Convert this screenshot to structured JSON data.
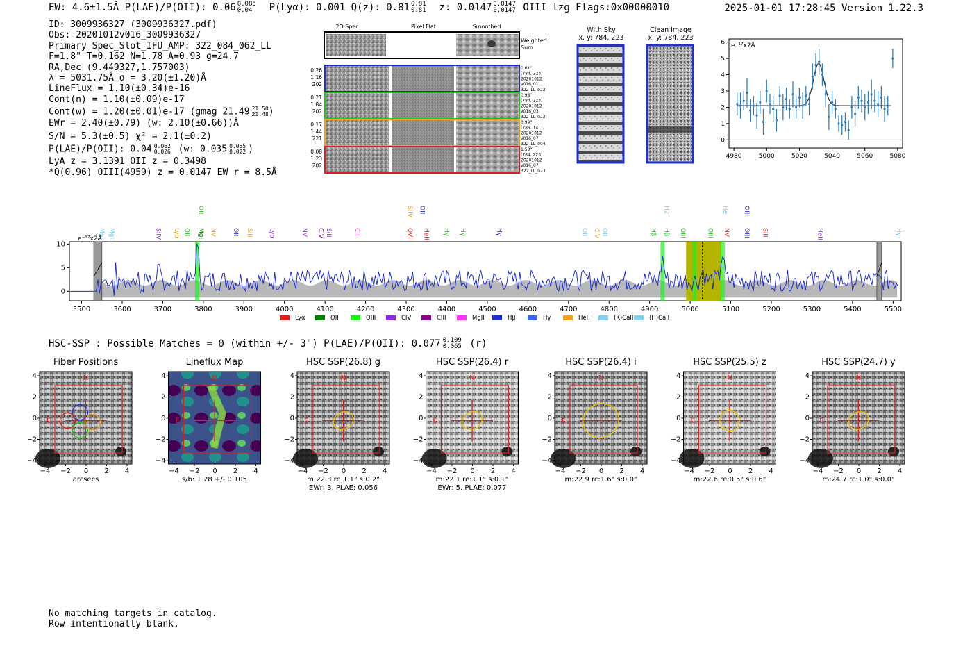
{
  "header": {
    "left": "EW: 4.6±1.5Å  P(LAE)/P(OII): 0.06",
    "plae_sup": "0.085",
    "plae_sub": "0.04",
    "plya": "P(Lyα): 0.001  Q(z): 0.81",
    "qz_sup": "0.81",
    "qz_sub": "0.81",
    "z": "z: 0.0147",
    "z_sup": "0.0147",
    "z_sub": "0.0147",
    "tail": "OIII  lzg  Flags:0x00000010",
    "timestamp": "2025-01-01 17:28:45  Version 1.22.3"
  },
  "info": {
    "lines": [
      "ID: 3009936327 (3009936327.pdf)",
      "Obs: 20201012v016_3009936327",
      "Primary Spec_Slot_IFU_AMP: 322_084_062_LL",
      "F=1.8\"  T=0.162  N=1.78  A=0.93  g=24.7",
      "RA,Dec (9.449327,1.757003)",
      "λ = 5031.75Å  σ = 3.20(±1.20)Å",
      "LineFlux = 1.10(±0.34)e-16",
      "Cont(n) = 1.10(±0.09)e-17"
    ],
    "contw": "Cont(w) = 1.20(±0.01)e-17 (gmag 21.49",
    "contw_sup": "21.50",
    "contw_sub": "21.48",
    "contw_end": ")",
    "ewr": "EWr = 2.40(±0.79) (w: 2.10(±0.66))Å",
    "sn": "S/N = 5.3(±0.5)  χ² = 2.1(±0.2)",
    "plae_a": "P(LAE)/P(OII): 0.04",
    "plae_a_sup": "0.062",
    "plae_a_sub": "0.026",
    "plae_b": "(w: 0.035",
    "plae_b_sup": "0.055",
    "plae_b_sub": "0.022",
    "plae_c": ")",
    "lya": "LyA z = 3.1391  OII z = 0.3498",
    "q": "*Q(0.96) OIII(4959) z = 0.0147  EW r = 8.5Å"
  },
  "cutouts": {
    "headers": [
      "2D Spec",
      "Pixel Flat",
      "Smoothed"
    ],
    "weighted_label": "Weighted\nSum",
    "rows": [
      {
        "left": [
          "0.26",
          "1.16",
          "202"
        ],
        "right": [
          "0.61\"",
          "(784, 223)",
          "20201012",
          "v016_01",
          "322_LL_023"
        ],
        "color": "#1f2fd0"
      },
      {
        "left": [
          "0.21",
          "1.84",
          "202"
        ],
        "right": [
          "0.98\"",
          "(784, 223)",
          "20201012",
          "v016_03",
          "322_LL_023"
        ],
        "color": "#22c422"
      },
      {
        "left": [
          "0.17",
          "1.44",
          "221"
        ],
        "right": [
          "0.99\"",
          "(789, 14)",
          "20201012",
          "v016_07",
          "322_LL_004"
        ],
        "color": "#f2a020"
      },
      {
        "left": [
          "0.08",
          "1.23",
          "202"
        ],
        "right": [
          "1.58\"",
          "(784, 223)",
          "20201012",
          "v016_07",
          "322_LL_023"
        ],
        "color": "#e01e1e"
      }
    ]
  },
  "sky": {
    "with_sky": "With Sky",
    "clean": "Clean Image",
    "coords": "x, y: 784, 223"
  },
  "chart_data": [
    {
      "type": "line",
      "id": "line-fit",
      "ylabel": "e⁻¹⁷x2Å",
      "xlim": [
        4977,
        5083
      ],
      "ylim": [
        -0.5,
        6.2
      ],
      "xticks": [
        4980,
        5000,
        5020,
        5040,
        5060,
        5080
      ],
      "yticks": [
        0,
        1,
        2,
        3,
        4,
        5,
        6
      ],
      "points": [
        {
          "x": 4982,
          "y": 2.2,
          "e": 0.7
        },
        {
          "x": 4984,
          "y": 2.1,
          "e": 0.8
        },
        {
          "x": 4986,
          "y": 2.4,
          "e": 0.6
        },
        {
          "x": 4988,
          "y": 2.9,
          "e": 0.9
        },
        {
          "x": 4990,
          "y": 1.8,
          "e": 0.7
        },
        {
          "x": 4992,
          "y": 2.1,
          "e": 0.6
        },
        {
          "x": 4994,
          "y": 1.5,
          "e": 0.8
        },
        {
          "x": 4996,
          "y": 2.3,
          "e": 0.7
        },
        {
          "x": 4998,
          "y": 1.1,
          "e": 0.8
        },
        {
          "x": 5000,
          "y": 3.0,
          "e": 0.7
        },
        {
          "x": 5002,
          "y": 2.2,
          "e": 0.6
        },
        {
          "x": 5004,
          "y": 1.9,
          "e": 0.8
        },
        {
          "x": 5006,
          "y": 1.2,
          "e": 0.7
        },
        {
          "x": 5008,
          "y": 2.7,
          "e": 0.6
        },
        {
          "x": 5010,
          "y": 2.0,
          "e": 0.8
        },
        {
          "x": 5012,
          "y": 2.5,
          "e": 0.7
        },
        {
          "x": 5014,
          "y": 1.9,
          "e": 0.6
        },
        {
          "x": 5016,
          "y": 2.8,
          "e": 0.8
        },
        {
          "x": 5018,
          "y": 2.0,
          "e": 0.7
        },
        {
          "x": 5020,
          "y": 2.6,
          "e": 0.6
        },
        {
          "x": 5022,
          "y": 2.1,
          "e": 0.8
        },
        {
          "x": 5024,
          "y": 2.7,
          "e": 0.6
        },
        {
          "x": 5026,
          "y": 2.2,
          "e": 0.7
        },
        {
          "x": 5028,
          "y": 3.9,
          "e": 0.8
        },
        {
          "x": 5030,
          "y": 4.6,
          "e": 0.7
        },
        {
          "x": 5032,
          "y": 4.8,
          "e": 0.8
        },
        {
          "x": 5034,
          "y": 4.0,
          "e": 0.7
        },
        {
          "x": 5036,
          "y": 2.8,
          "e": 0.8
        },
        {
          "x": 5038,
          "y": 1.4,
          "e": 0.8
        },
        {
          "x": 5040,
          "y": 2.3,
          "e": 0.7
        },
        {
          "x": 5042,
          "y": 1.9,
          "e": 0.6
        },
        {
          "x": 5044,
          "y": 1.0,
          "e": 0.5
        },
        {
          "x": 5046,
          "y": 0.9,
          "e": 0.6
        },
        {
          "x": 5048,
          "y": 1.1,
          "e": 0.6
        },
        {
          "x": 5050,
          "y": 0.6,
          "e": 0.6
        },
        {
          "x": 5052,
          "y": 2.0,
          "e": 0.7
        },
        {
          "x": 5054,
          "y": 1.6,
          "e": 0.8
        },
        {
          "x": 5056,
          "y": 2.6,
          "e": 0.7
        },
        {
          "x": 5058,
          "y": 2.4,
          "e": 0.7
        },
        {
          "x": 5060,
          "y": 2.0,
          "e": 0.8
        },
        {
          "x": 5062,
          "y": 2.3,
          "e": 0.7
        },
        {
          "x": 5064,
          "y": 2.8,
          "e": 0.9
        },
        {
          "x": 5066,
          "y": 2.4,
          "e": 0.7
        },
        {
          "x": 5068,
          "y": 2.2,
          "e": 0.8
        },
        {
          "x": 5070,
          "y": 2.6,
          "e": 0.7
        },
        {
          "x": 5072,
          "y": 1.9,
          "e": 0.8
        },
        {
          "x": 5074,
          "y": 2.1,
          "e": 0.6
        },
        {
          "x": 5077,
          "y": 5.0,
          "e": 0.6
        }
      ],
      "model": {
        "continuum": 2.1,
        "amplitude": 2.6,
        "center": 5031.75,
        "sigma": 3.2
      }
    },
    {
      "type": "line",
      "id": "full-spectrum",
      "ylabel": "e⁻¹⁷x2Å",
      "xlim": [
        3470,
        5520
      ],
      "ylim": [
        -2,
        10.5
      ],
      "xticks": [
        3500,
        3600,
        3700,
        3800,
        3900,
        4000,
        4100,
        4200,
        4300,
        4400,
        4500,
        4600,
        4700,
        4800,
        4900,
        5000,
        5100,
        5200,
        5300,
        5400,
        5500
      ],
      "yticks": [
        0,
        5,
        10
      ],
      "features": [
        {
          "x": 3785,
          "label": "OII",
          "color": "#22c422"
        },
        {
          "x": 4932,
          "label": "Hβ",
          "color": "#22c422"
        },
        {
          "x": 5010,
          "label": "OIII",
          "color": "#22c422"
        },
        {
          "x": 5030,
          "label": "OIII",
          "color": "#000000",
          "band": [
            4990,
            5077
          ]
        },
        {
          "x": 5080,
          "label": "OIII",
          "color": "#22c422"
        }
      ],
      "shaded": [
        {
          "from": 3530,
          "to": 3550
        },
        {
          "from": 5460,
          "to": 5472
        }
      ],
      "line_labels_top": [
        {
          "x": 3785,
          "text": "OII",
          "color": "#22c422"
        },
        {
          "x": 4300,
          "text": "SiIV",
          "color": "#f2a020"
        },
        {
          "x": 4330,
          "text": "OII",
          "color": "#1f2fd0"
        },
        {
          "x": 4932,
          "text": "H2",
          "color": "#7ec8ea"
        },
        {
          "x": 5077,
          "text": "He",
          "color": "#7ec8ea"
        },
        {
          "x": 5130,
          "text": "OIII",
          "color": "#1f2fd0"
        }
      ],
      "line_labels_low": [
        {
          "x": 3540,
          "text": "MgII",
          "color": "#7ec8ea"
        },
        {
          "x": 3565,
          "text": "MgII",
          "color": "#7ec8ea"
        },
        {
          "x": 3680,
          "text": "SiIV",
          "color": "#8a2be2"
        },
        {
          "x": 3725,
          "text": "Lyα",
          "color": "#f2a020"
        },
        {
          "x": 3750,
          "text": "OII",
          "color": "#22c422"
        },
        {
          "x": 3785,
          "text": "MgII",
          "color": "#008000"
        },
        {
          "x": 3815,
          "text": "NV",
          "color": "#f2a020"
        },
        {
          "x": 3870,
          "text": "OII",
          "color": "#1f2fd0"
        },
        {
          "x": 3905,
          "text": "SiII",
          "color": "#f2a020"
        },
        {
          "x": 3960,
          "text": "Lyα",
          "color": "#8a2be2"
        },
        {
          "x": 4040,
          "text": "NV",
          "color": "#8a2be2"
        },
        {
          "x": 4080,
          "text": "CIV",
          "color": "#8b008b"
        },
        {
          "x": 4100,
          "text": "SiII",
          "color": "#8a2be2"
        },
        {
          "x": 4170,
          "text": "CII",
          "color": "#ff33ff"
        },
        {
          "x": 4300,
          "text": "OVI",
          "color": "#e01e1e"
        },
        {
          "x": 4340,
          "text": "HeII",
          "color": "#e01e1e"
        },
        {
          "x": 4390,
          "text": "Hγ",
          "color": "#22c422"
        },
        {
          "x": 4430,
          "text": "Hγ",
          "color": "#22c422"
        },
        {
          "x": 4520,
          "text": "Hγ",
          "color": "#1f2fd0"
        },
        {
          "x": 4730,
          "text": "OII",
          "color": "#7ec8ea"
        },
        {
          "x": 4760,
          "text": "CIV",
          "color": "#f2a020"
        },
        {
          "x": 4780,
          "text": "OII",
          "color": "#7ec8ea"
        },
        {
          "x": 4900,
          "text": "Hβ",
          "color": "#22c422"
        },
        {
          "x": 4932,
          "text": "Hβ",
          "color": "#22c422"
        },
        {
          "x": 4972,
          "text": "OIII",
          "color": "#22c422"
        },
        {
          "x": 5040,
          "text": "OIII",
          "color": "#22c422"
        },
        {
          "x": 5080,
          "text": "NV",
          "color": "#e01e1e"
        },
        {
          "x": 5130,
          "text": "OIII",
          "color": "#1f2fd0"
        },
        {
          "x": 5175,
          "text": "SiII",
          "color": "#e01e1e"
        },
        {
          "x": 5310,
          "text": "HeII",
          "color": "#8a2be2"
        },
        {
          "x": 5505,
          "text": "Hγ",
          "color": "#7ec8ea"
        }
      ],
      "legend": [
        {
          "label": "Lyα",
          "color": "#e01e1e"
        },
        {
          "label": "OII",
          "color": "#008000"
        },
        {
          "label": "OIII",
          "color": "#22ee22"
        },
        {
          "label": "CIV",
          "color": "#8a2be2"
        },
        {
          "label": "CIII",
          "color": "#8b008b"
        },
        {
          "label": "MgII",
          "color": "#ff33ff"
        },
        {
          "label": "Hβ",
          "color": "#1f2fd0"
        },
        {
          "label": "Hγ",
          "color": "#4169e1"
        },
        {
          "label": "HeII",
          "color": "#f2a020"
        },
        {
          "label": "(K)CaII",
          "color": "#87ceeb"
        },
        {
          "label": "(H)CaII",
          "color": "#87ceeb"
        }
      ],
      "peaks": [
        {
          "x": 3785,
          "y": 9.0
        },
        {
          "x": 4932,
          "y": 7.0
        },
        {
          "x": 5031,
          "y": 4.5
        },
        {
          "x": 5079,
          "y": 8.0
        }
      ]
    }
  ],
  "hsc": {
    "title": "HSC-SSP : Possible Matches = 0 (within +/- 3\")  P(LAE)/P(OII): 0.077",
    "sup": "0.109",
    "sub": "0.065",
    "band": "(r)",
    "axis_ticks": [
      "-4",
      "-2",
      "0",
      "2",
      "4"
    ],
    "y_ticks": [
      "4",
      "2",
      "0",
      "-2",
      "-4"
    ],
    "panels": [
      {
        "title": "Fiber Positions",
        "caption1": "arcsecs",
        "caption2": "",
        "compass_n": "N",
        "compass_e": "E"
      },
      {
        "title": "Lineflux Map",
        "caption1": "s/b: 1.28 +/- 0.105",
        "caption2": "",
        "compass_n": "N",
        "compass_e": "E"
      },
      {
        "title": "HSC SSP(26.8) g",
        "caption1": "m:22.3  re:1.1\"  s:0.2\"",
        "caption2": "EWr: 3. PLAE: 0.056",
        "compass_n": "N",
        "compass_e": "E"
      },
      {
        "title": "HSC SSP(26.4) r",
        "caption1": "m:22.1  re:1.1\"  s:0.1\"",
        "caption2": "EWr: 5. PLAE: 0.077",
        "compass_n": "N",
        "compass_e": "E"
      },
      {
        "title": "HSC SSP(26.4) i",
        "caption1": "m:22.9 rc:1.6\"  s:0.0\"",
        "caption2": "",
        "compass_n": "N",
        "compass_e": "E"
      },
      {
        "title": "HSC SSP(25.5) z",
        "caption1": "m:22.6  re:0.5\"  s:0.6\"",
        "caption2": "",
        "compass_n": "N",
        "compass_e": "E"
      },
      {
        "title": "HSC SSP(24.7) y",
        "caption1": "m:24.7 rc:1.0\"  s:0.0\"",
        "caption2": "",
        "compass_n": "N",
        "compass_e": "E"
      }
    ]
  },
  "footer": {
    "line1": "No matching targets in catalog.",
    "line2": "Row intentionally blank."
  },
  "colors": {
    "blue": "#1f2fd0",
    "red": "#e01e1e",
    "olive": "#b5b500",
    "gray": "#b8b8b8",
    "fit_blue": "#2f7fbf",
    "yellow": "#f2c200"
  }
}
